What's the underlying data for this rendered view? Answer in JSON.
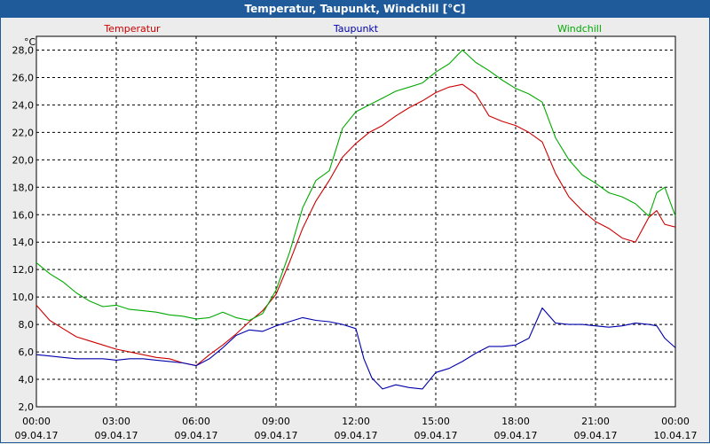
{
  "window": {
    "title": "Temperatur, Taupunkt, Windchill [°C]"
  },
  "chart_data": {
    "type": "line",
    "title": "Temperatur, Taupunkt, Windchill [°C]",
    "ylabel": "°C",
    "ylim": [
      2.0,
      29.0
    ],
    "xlim": [
      0,
      24
    ],
    "grid": true,
    "legend_position": "top",
    "y_ticks": [
      "2,0",
      "4,0",
      "6,0",
      "8,0",
      "10,0",
      "12,0",
      "14,0",
      "16,0",
      "18,0",
      "20,0",
      "22,0",
      "24,0",
      "26,0",
      "28,0"
    ],
    "y_tick_values": [
      2,
      4,
      6,
      8,
      10,
      12,
      14,
      16,
      18,
      20,
      22,
      24,
      26,
      28
    ],
    "x_ticks": [
      {
        "time": "00:00",
        "date": "09.04.17"
      },
      {
        "time": "03:00",
        "date": "09.04.17"
      },
      {
        "time": "06:00",
        "date": "09.04.17"
      },
      {
        "time": "09:00",
        "date": "09.04.17"
      },
      {
        "time": "12:00",
        "date": "09.04.17"
      },
      {
        "time": "15:00",
        "date": "09.04.17"
      },
      {
        "time": "18:00",
        "date": "09.04.17"
      },
      {
        "time": "21:00",
        "date": "09.04.17"
      },
      {
        "time": "00:00",
        "date": "10.04.17"
      }
    ],
    "x_tick_values": [
      0,
      3,
      6,
      9,
      12,
      15,
      18,
      21,
      24
    ],
    "series": [
      {
        "name": "Temperatur",
        "color": "#cc0000",
        "x": [
          0,
          0.5,
          1,
          1.5,
          2,
          2.5,
          3,
          3.5,
          4,
          4.5,
          5,
          5.5,
          6,
          6.5,
          7,
          7.5,
          8,
          8.5,
          9,
          9.5,
          10,
          10.5,
          11,
          11.5,
          12,
          12.5,
          13,
          13.5,
          14,
          14.5,
          15,
          15.5,
          16,
          16.5,
          17,
          17.5,
          18,
          18.5,
          19,
          19.5,
          20,
          20.5,
          21,
          21.5,
          22,
          22.5,
          23,
          23.3,
          23.6,
          24
        ],
        "y": [
          9.4,
          8.3,
          7.7,
          7.1,
          6.8,
          6.5,
          6.2,
          6.0,
          5.8,
          5.6,
          5.5,
          5.2,
          5.0,
          5.8,
          6.5,
          7.3,
          8.2,
          9.0,
          10.2,
          12.5,
          15.0,
          17.0,
          18.5,
          20.2,
          21.2,
          22.0,
          22.5,
          23.2,
          23.8,
          24.3,
          24.9,
          25.3,
          25.5,
          24.8,
          23.2,
          22.8,
          22.5,
          22.0,
          21.3,
          19.0,
          17.3,
          16.3,
          15.5,
          15.0,
          14.3,
          14.0,
          15.8,
          16.3,
          15.3,
          15.1
        ]
      },
      {
        "name": "Taupunkt",
        "color": "#0000aa",
        "x": [
          0,
          0.5,
          1,
          1.5,
          2,
          2.5,
          3,
          3.5,
          4,
          4.5,
          5,
          5.5,
          6,
          6.5,
          7,
          7.5,
          8,
          8.5,
          9,
          9.5,
          10,
          10.5,
          11,
          11.5,
          12,
          12.3,
          12.6,
          13,
          13.5,
          14,
          14.5,
          15,
          15.5,
          16,
          16.5,
          17,
          17.5,
          18,
          18.5,
          19,
          19.5,
          20,
          20.5,
          21,
          21.5,
          22,
          22.5,
          23,
          23.3,
          23.6,
          24
        ],
        "y": [
          5.8,
          5.7,
          5.6,
          5.5,
          5.5,
          5.5,
          5.4,
          5.5,
          5.5,
          5.4,
          5.3,
          5.2,
          5.0,
          5.5,
          6.3,
          7.2,
          7.6,
          7.5,
          7.9,
          8.2,
          8.5,
          8.3,
          8.2,
          8.0,
          7.7,
          5.5,
          4.1,
          3.3,
          3.6,
          3.4,
          3.3,
          4.5,
          4.8,
          5.3,
          5.9,
          6.4,
          6.4,
          6.5,
          7.0,
          9.2,
          8.1,
          8.0,
          8.0,
          7.9,
          7.8,
          7.9,
          8.1,
          8.0,
          7.9,
          7.0,
          6.3
        ]
      },
      {
        "name": "Windchill",
        "color": "#00aa00",
        "x": [
          0,
          0.5,
          1,
          1.5,
          2,
          2.5,
          3,
          3.5,
          4,
          4.5,
          5,
          5.5,
          6,
          6.5,
          7,
          7.5,
          8,
          8.5,
          9,
          9.5,
          10,
          10.5,
          11,
          11.5,
          12,
          12.5,
          13,
          13.5,
          14,
          14.5,
          15,
          15.5,
          16,
          16.5,
          17,
          17.5,
          18,
          18.5,
          19,
          19.5,
          20,
          20.5,
          21,
          21.5,
          22,
          22.5,
          23,
          23.3,
          23.6,
          24
        ],
        "y": [
          12.5,
          11.7,
          11.1,
          10.3,
          9.7,
          9.3,
          9.4,
          9.1,
          9.0,
          8.9,
          8.7,
          8.6,
          8.4,
          8.5,
          8.9,
          8.5,
          8.3,
          8.8,
          10.5,
          13.2,
          16.5,
          18.5,
          19.2,
          22.3,
          23.5,
          24.0,
          24.5,
          25.0,
          25.3,
          25.6,
          26.4,
          27.0,
          28.0,
          27.1,
          26.5,
          25.8,
          25.2,
          24.8,
          24.2,
          21.6,
          20.0,
          18.9,
          18.3,
          17.6,
          17.3,
          16.8,
          15.9,
          17.6,
          18.0,
          15.9
        ]
      }
    ]
  }
}
